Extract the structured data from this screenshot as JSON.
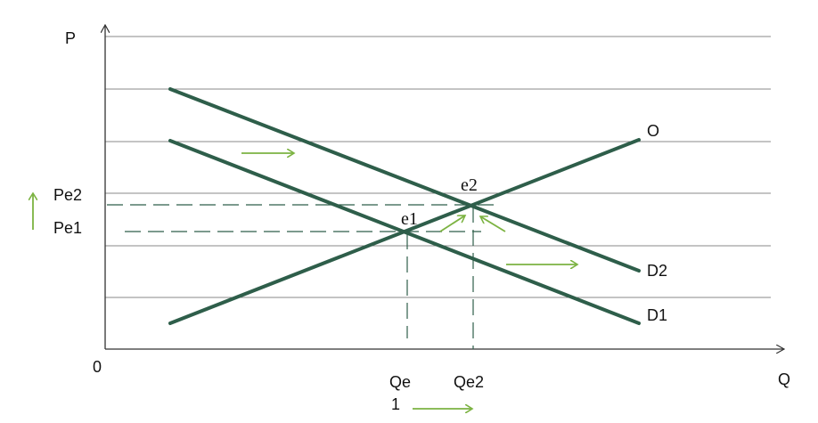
{
  "axes": {
    "y_label": "P",
    "x_label": "Q",
    "origin_label": "0"
  },
  "curves": {
    "supply_label": "O",
    "demand1_label": "D1",
    "demand2_label": "D2"
  },
  "points": {
    "e1_label": "e1",
    "e2_label": "e2"
  },
  "price_labels": {
    "pe1": "Pe1",
    "pe2": "Pe2"
  },
  "quantity_labels": {
    "qe": "Qe",
    "qe_sub": "1",
    "qe2": "Qe2"
  },
  "colors": {
    "curve": "#2e5e4a",
    "arrow": "#7cb342",
    "grid": "#888888",
    "dashed": "#2e5e4a",
    "axis": "#333333"
  }
}
